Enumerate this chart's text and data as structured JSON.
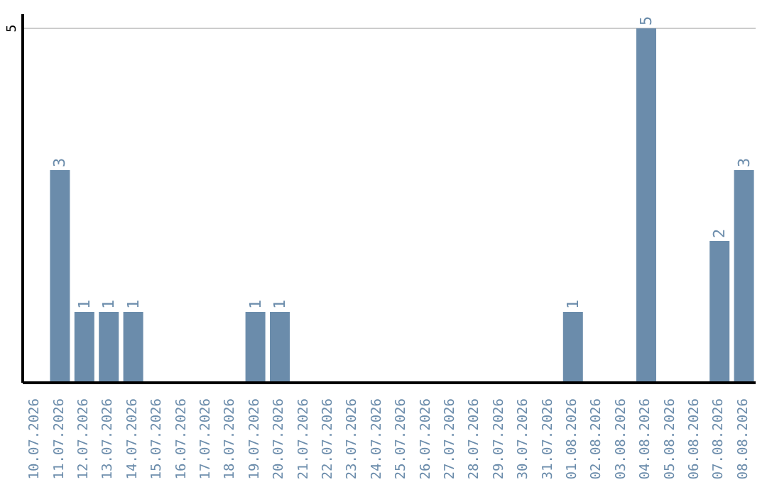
{
  "chart_data": {
    "type": "bar",
    "categories": [
      "10.07.2026",
      "11.07.2026",
      "12.07.2026",
      "13.07.2026",
      "14.07.2026",
      "15.07.2026",
      "16.07.2026",
      "17.07.2026",
      "18.07.2026",
      "19.07.2026",
      "20.07.2026",
      "21.07.2026",
      "22.07.2026",
      "23.07.2026",
      "24.07.2026",
      "25.07.2026",
      "26.07.2026",
      "27.07.2026",
      "28.07.2026",
      "29.07.2026",
      "30.07.2026",
      "31.07.2026",
      "01.08.2026",
      "02.08.2026",
      "03.08.2026",
      "04.08.2026",
      "05.08.2026",
      "06.08.2026",
      "07.08.2026",
      "08.08.2026"
    ],
    "values": [
      0,
      3,
      1,
      1,
      1,
      0,
      0,
      0,
      0,
      1,
      1,
      0,
      0,
      0,
      0,
      0,
      0,
      0,
      0,
      0,
      0,
      0,
      1,
      0,
      0,
      5,
      0,
      0,
      2,
      3
    ],
    "value_labels": [
      null,
      "3",
      "1",
      "1",
      "1",
      null,
      null,
      null,
      null,
      "1",
      "1",
      null,
      null,
      null,
      null,
      null,
      null,
      null,
      null,
      null,
      null,
      null,
      "1",
      null,
      null,
      "5",
      null,
      null,
      "2",
      "3"
    ],
    "color": "#6b8cab",
    "ylim": [
      0,
      5.2
    ],
    "yticks": [
      5
    ],
    "grid": "y"
  }
}
